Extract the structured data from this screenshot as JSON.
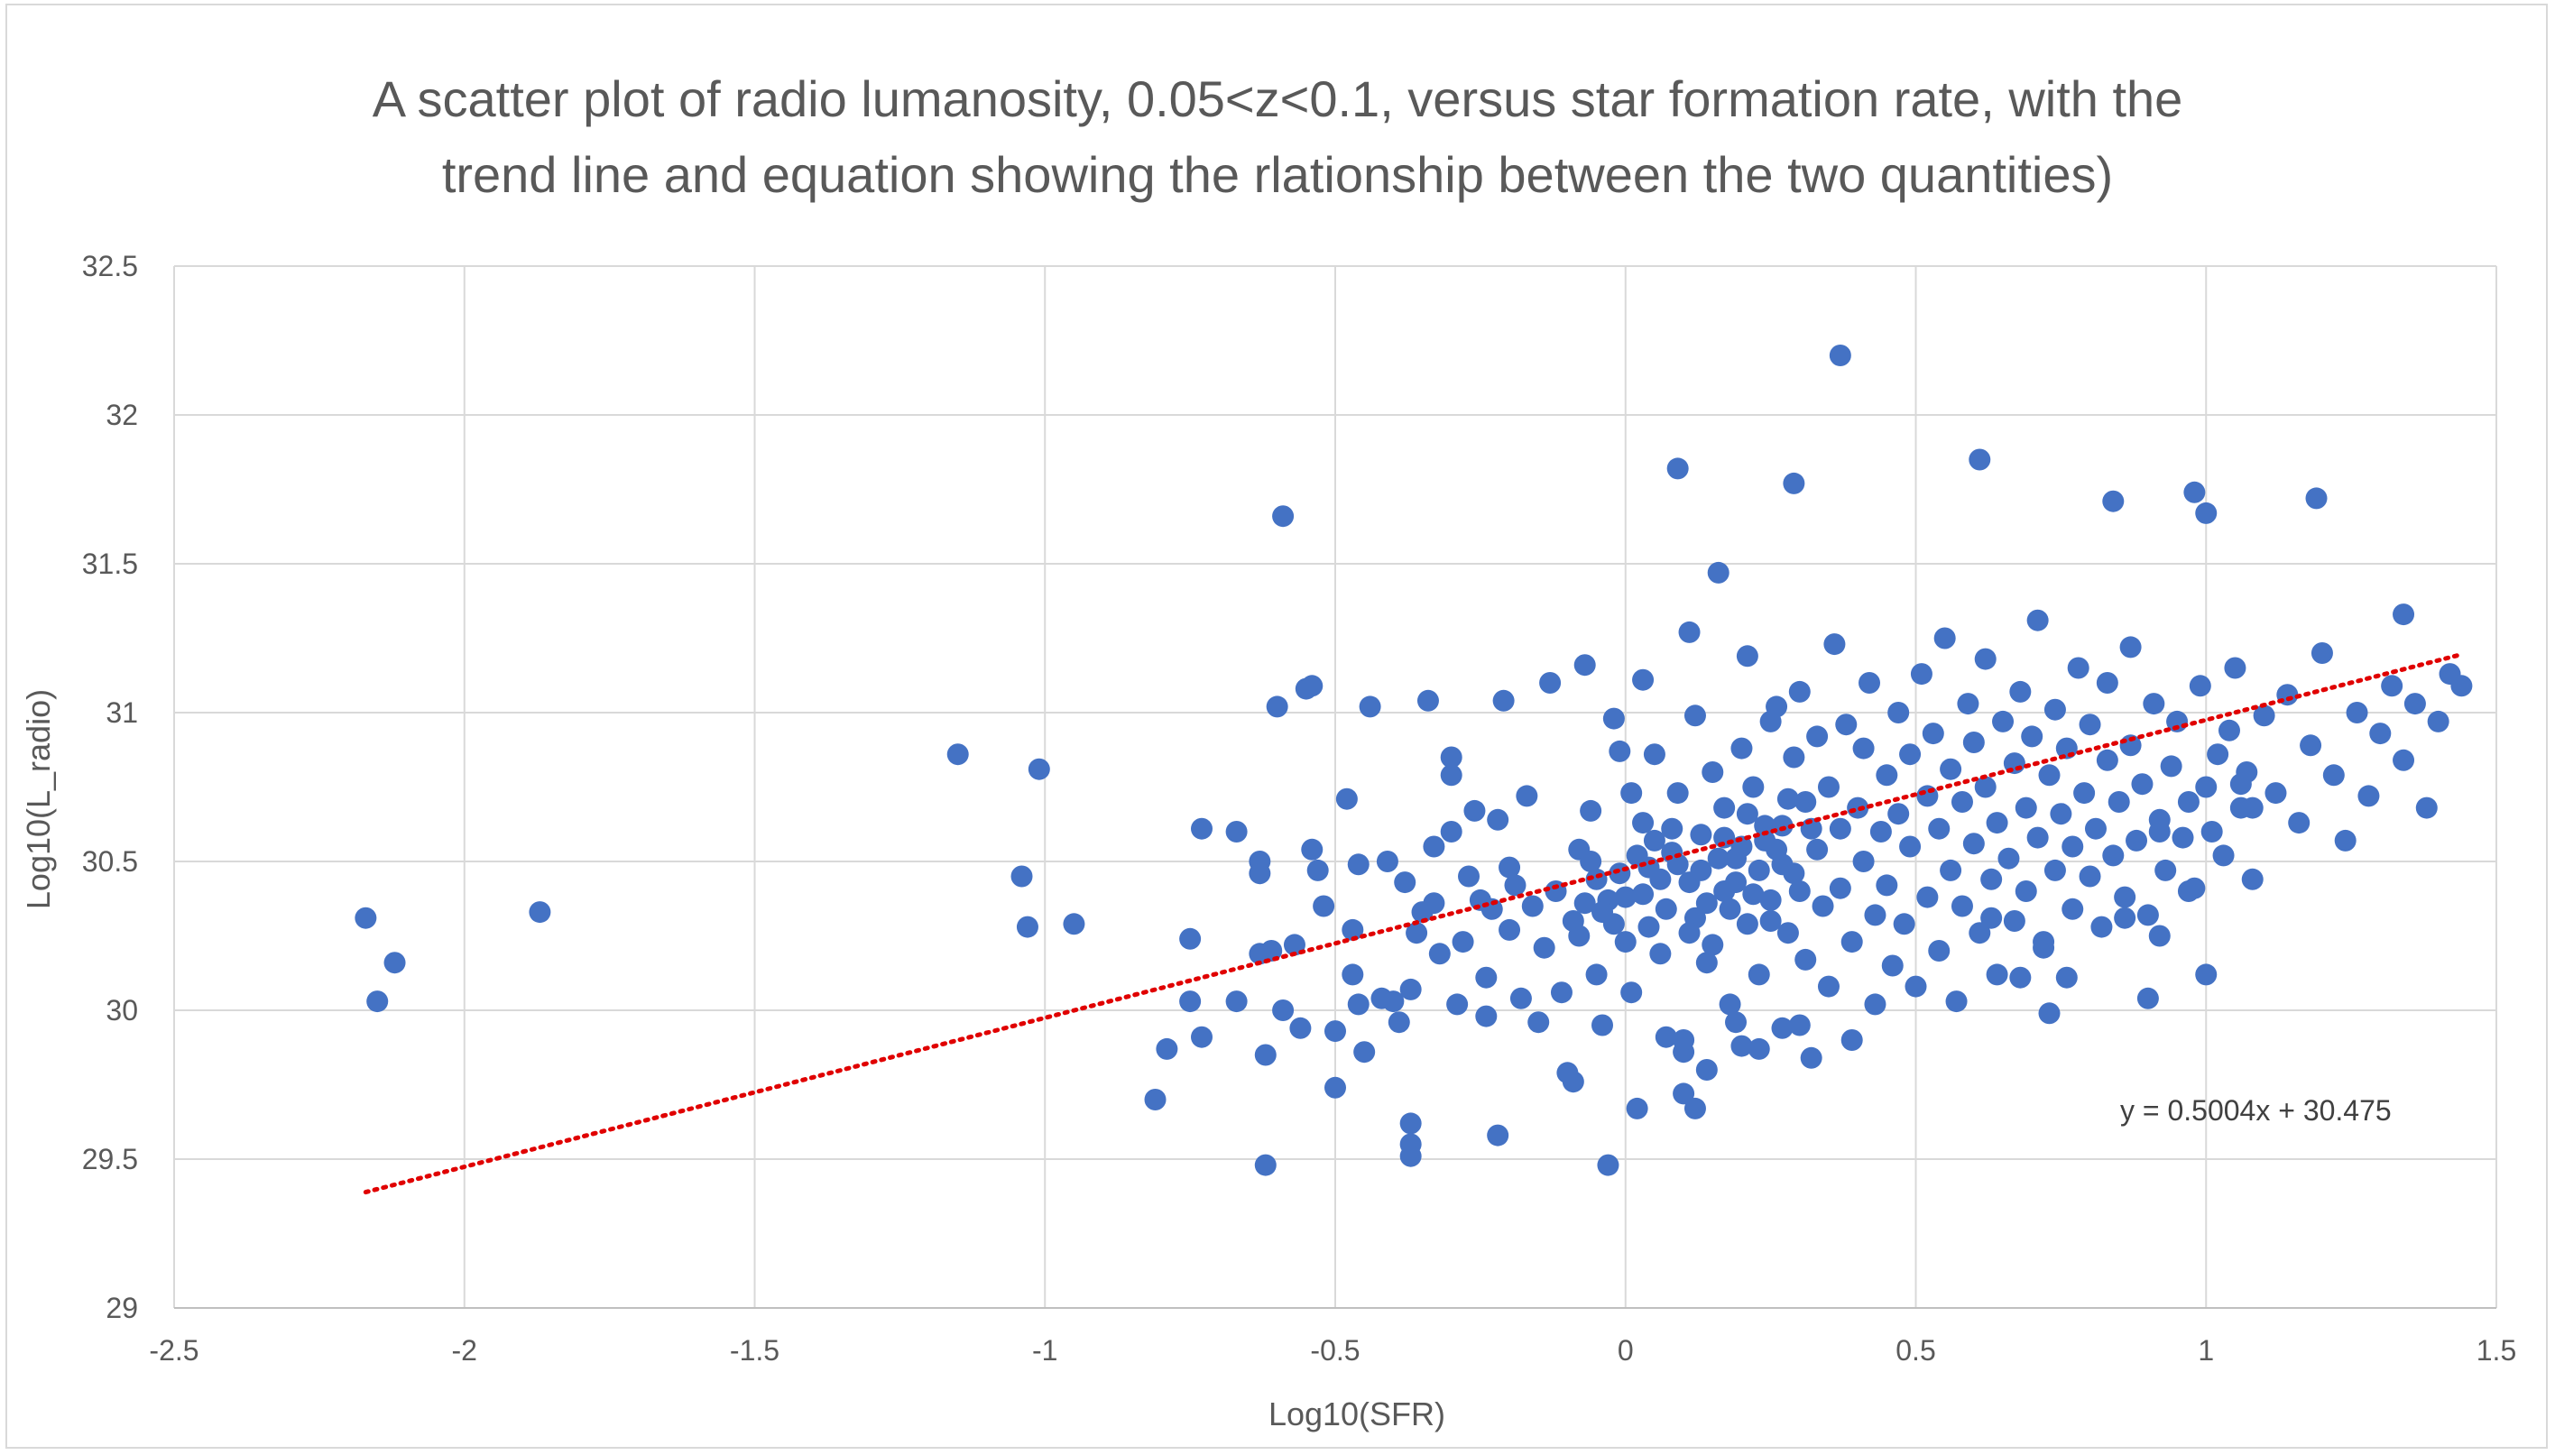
{
  "chart_data": {
    "type": "scatter",
    "title_lines": [
      "A scatter plot of radio lumanosity, 0.05<z<0.1, versus star formation rate, with the",
      "trend line and equation showing the rlationship between the two quantities)"
    ],
    "xlabel": "Log10(SFR)",
    "ylabel": "Log10(L_radio)",
    "xlim": [
      -2.5,
      1.5
    ],
    "ylim": [
      29,
      32.5
    ],
    "xticks": [
      "-2.5",
      "-2",
      "-1.5",
      "-1",
      "-0.5",
      "0",
      "0.5",
      "1",
      "1.5"
    ],
    "yticks": [
      "29",
      "29.5",
      "30",
      "30.5",
      "31",
      "31.5",
      "32",
      "32.5"
    ],
    "grid": true,
    "legend": "none",
    "colors": {
      "points": "#4472c4",
      "trendline": "#e00000",
      "grid": "#d9d9d9"
    },
    "trendline": {
      "slope": 0.5004,
      "intercept": 30.475,
      "x_range": [
        -2.17,
        1.44
      ],
      "style": "dotted"
    },
    "equation_label": "y = 0.5004x + 30.475",
    "points": [
      [
        -2.17,
        30.31
      ],
      [
        -2.15,
        30.03
      ],
      [
        -2.12,
        30.16
      ],
      [
        -1.87,
        30.33
      ],
      [
        -1.15,
        30.86
      ],
      [
        -1.04,
        30.45
      ],
      [
        -1.03,
        30.28
      ],
      [
        -1.01,
        30.81
      ],
      [
        -0.95,
        30.29
      ],
      [
        -0.81,
        29.7
      ],
      [
        -0.79,
        29.87
      ],
      [
        -0.75,
        30.24
      ],
      [
        -0.75,
        30.03
      ],
      [
        -0.73,
        30.61
      ],
      [
        -0.73,
        29.91
      ],
      [
        -0.67,
        30.6
      ],
      [
        -0.67,
        30.03
      ],
      [
        -0.63,
        30.5
      ],
      [
        -0.63,
        30.46
      ],
      [
        -0.63,
        30.19
      ],
      [
        -0.62,
        29.48
      ],
      [
        -0.62,
        29.85
      ],
      [
        -0.61,
        30.2
      ],
      [
        -0.6,
        31.02
      ],
      [
        -0.59,
        31.66
      ],
      [
        -0.59,
        30.0
      ],
      [
        -0.57,
        30.22
      ],
      [
        -0.56,
        29.94
      ],
      [
        -0.55,
        31.08
      ],
      [
        -0.54,
        31.09
      ],
      [
        -0.54,
        30.54
      ],
      [
        -0.53,
        30.47
      ],
      [
        -0.52,
        30.35
      ],
      [
        -0.5,
        29.74
      ],
      [
        -0.5,
        29.93
      ],
      [
        -0.48,
        30.71
      ],
      [
        -0.47,
        30.27
      ],
      [
        -0.47,
        30.12
      ],
      [
        -0.46,
        30.49
      ],
      [
        -0.46,
        30.02
      ],
      [
        -0.45,
        29.86
      ],
      [
        -0.44,
        31.02
      ],
      [
        -0.42,
        30.04
      ],
      [
        -0.41,
        30.5
      ],
      [
        -0.4,
        30.03
      ],
      [
        -0.39,
        29.96
      ],
      [
        -0.38,
        30.43
      ],
      [
        -0.37,
        29.62
      ],
      [
        -0.37,
        29.55
      ],
      [
        -0.37,
        29.51
      ],
      [
        -0.37,
        30.07
      ],
      [
        -0.36,
        30.26
      ],
      [
        -0.35,
        30.33
      ],
      [
        -0.34,
        31.04
      ],
      [
        -0.33,
        30.55
      ],
      [
        -0.33,
        30.36
      ],
      [
        -0.32,
        30.19
      ],
      [
        -0.3,
        30.6
      ],
      [
        -0.3,
        30.85
      ],
      [
        -0.3,
        30.79
      ],
      [
        -0.29,
        30.02
      ],
      [
        -0.28,
        30.23
      ],
      [
        -0.27,
        30.45
      ],
      [
        -0.26,
        30.67
      ],
      [
        -0.25,
        30.37
      ],
      [
        -0.24,
        29.98
      ],
      [
        -0.24,
        30.11
      ],
      [
        -0.23,
        30.34
      ],
      [
        -0.22,
        30.64
      ],
      [
        -0.22,
        29.58
      ],
      [
        -0.21,
        31.04
      ],
      [
        -0.2,
        30.48
      ],
      [
        -0.2,
        30.27
      ],
      [
        -0.19,
        30.42
      ],
      [
        -0.18,
        30.04
      ],
      [
        -0.17,
        30.72
      ],
      [
        -0.16,
        30.35
      ],
      [
        -0.15,
        29.96
      ],
      [
        -0.14,
        30.21
      ],
      [
        -0.13,
        31.1
      ],
      [
        -0.12,
        30.4
      ],
      [
        -0.11,
        30.06
      ],
      [
        -0.1,
        29.79
      ],
      [
        -0.09,
        29.76
      ],
      [
        -0.09,
        30.3
      ],
      [
        -0.08,
        30.54
      ],
      [
        -0.07,
        31.16
      ],
      [
        -0.06,
        30.67
      ],
      [
        -0.05,
        30.12
      ],
      [
        -0.04,
        29.95
      ],
      [
        -0.03,
        29.48
      ],
      [
        -0.02,
        30.98
      ],
      [
        -0.01,
        30.87
      ],
      [
        0.0,
        30.38
      ],
      [
        0.0,
        30.23
      ],
      [
        0.01,
        30.73
      ],
      [
        0.01,
        30.06
      ],
      [
        0.02,
        29.67
      ],
      [
        0.03,
        31.11
      ],
      [
        0.03,
        30.63
      ],
      [
        0.04,
        30.48
      ],
      [
        0.05,
        30.86
      ],
      [
        0.06,
        30.19
      ],
      [
        0.07,
        29.91
      ],
      [
        0.08,
        30.53
      ],
      [
        0.09,
        31.82
      ],
      [
        0.09,
        30.73
      ],
      [
        0.1,
        29.72
      ],
      [
        0.1,
        29.86
      ],
      [
        0.11,
        30.43
      ],
      [
        0.11,
        31.27
      ],
      [
        0.12,
        30.99
      ],
      [
        0.12,
        30.31
      ],
      [
        0.13,
        30.59
      ],
      [
        0.14,
        29.8
      ],
      [
        0.14,
        30.16
      ],
      [
        0.15,
        30.8
      ],
      [
        0.16,
        31.47
      ],
      [
        0.17,
        30.4
      ],
      [
        0.17,
        30.68
      ],
      [
        0.18,
        30.02
      ],
      [
        0.19,
        29.96
      ],
      [
        0.19,
        30.51
      ],
      [
        0.2,
        30.88
      ],
      [
        0.21,
        31.19
      ],
      [
        0.21,
        30.29
      ],
      [
        0.22,
        30.75
      ],
      [
        0.23,
        29.87
      ],
      [
        0.23,
        30.12
      ],
      [
        0.24,
        30.57
      ],
      [
        0.25,
        30.97
      ],
      [
        0.25,
        30.37
      ],
      [
        0.26,
        31.02
      ],
      [
        0.27,
        30.62
      ],
      [
        0.27,
        29.94
      ],
      [
        0.28,
        30.26
      ],
      [
        0.29,
        30.85
      ],
      [
        0.29,
        30.46
      ],
      [
        0.3,
        31.07
      ],
      [
        0.31,
        30.7
      ],
      [
        0.31,
        30.17
      ],
      [
        0.32,
        29.84
      ],
      [
        0.33,
        30.54
      ],
      [
        0.33,
        30.92
      ],
      [
        0.34,
        30.35
      ],
      [
        0.35,
        30.75
      ],
      [
        0.35,
        30.08
      ],
      [
        0.36,
        31.23
      ],
      [
        0.37,
        30.61
      ],
      [
        0.37,
        30.41
      ],
      [
        0.38,
        30.96
      ],
      [
        0.39,
        29.9
      ],
      [
        0.39,
        30.23
      ],
      [
        0.4,
        30.68
      ],
      [
        0.41,
        30.88
      ],
      [
        0.41,
        30.5
      ],
      [
        0.42,
        31.1
      ],
      [
        0.43,
        30.32
      ],
      [
        0.43,
        30.02
      ],
      [
        0.44,
        30.6
      ],
      [
        0.45,
        30.79
      ],
      [
        0.45,
        30.42
      ],
      [
        0.46,
        30.15
      ],
      [
        0.47,
        31.0
      ],
      [
        0.47,
        30.66
      ],
      [
        0.48,
        30.29
      ],
      [
        0.49,
        30.86
      ],
      [
        0.49,
        30.55
      ],
      [
        0.5,
        30.08
      ],
      [
        0.51,
        31.13
      ],
      [
        0.52,
        30.72
      ],
      [
        0.52,
        30.38
      ],
      [
        0.53,
        30.93
      ],
      [
        0.54,
        30.2
      ],
      [
        0.54,
        30.61
      ],
      [
        0.55,
        31.25
      ],
      [
        0.56,
        30.47
      ],
      [
        0.56,
        30.81
      ],
      [
        0.57,
        30.03
      ],
      [
        0.58,
        30.7
      ],
      [
        0.58,
        30.35
      ],
      [
        0.59,
        31.03
      ],
      [
        0.6,
        30.56
      ],
      [
        0.6,
        30.9
      ],
      [
        0.61,
        30.26
      ],
      [
        0.62,
        30.75
      ],
      [
        0.62,
        31.18
      ],
      [
        0.63,
        30.44
      ],
      [
        0.64,
        30.63
      ],
      [
        0.64,
        30.12
      ],
      [
        0.65,
        30.97
      ],
      [
        0.66,
        30.51
      ],
      [
        0.67,
        30.83
      ],
      [
        0.67,
        30.3
      ],
      [
        0.68,
        31.07
      ],
      [
        0.69,
        30.68
      ],
      [
        0.69,
        30.4
      ],
      [
        0.7,
        30.92
      ],
      [
        0.71,
        30.58
      ],
      [
        0.71,
        31.31
      ],
      [
        0.72,
        30.23
      ],
      [
        0.73,
        30.79
      ],
      [
        0.74,
        30.47
      ],
      [
        0.74,
        31.01
      ],
      [
        0.75,
        30.66
      ],
      [
        0.76,
        30.88
      ],
      [
        0.77,
        30.34
      ],
      [
        0.77,
        30.55
      ],
      [
        0.78,
        31.15
      ],
      [
        0.79,
        30.73
      ],
      [
        0.8,
        30.45
      ],
      [
        0.8,
        30.96
      ],
      [
        0.81,
        30.61
      ],
      [
        0.82,
        30.28
      ],
      [
        0.83,
        30.84
      ],
      [
        0.83,
        31.1
      ],
      [
        0.84,
        30.52
      ],
      [
        0.85,
        30.7
      ],
      [
        0.86,
        30.38
      ],
      [
        0.87,
        31.22
      ],
      [
        0.87,
        30.89
      ],
      [
        0.88,
        30.57
      ],
      [
        0.89,
        30.76
      ],
      [
        0.9,
        30.32
      ],
      [
        0.91,
        31.03
      ],
      [
        0.92,
        30.64
      ],
      [
        0.93,
        30.47
      ],
      [
        0.94,
        30.82
      ],
      [
        0.95,
        30.97
      ],
      [
        0.96,
        30.58
      ],
      [
        0.97,
        30.7
      ],
      [
        0.98,
        30.41
      ],
      [
        0.99,
        31.09
      ],
      [
        1.0,
        30.75
      ],
      [
        1.01,
        30.6
      ],
      [
        1.02,
        30.86
      ],
      [
        1.03,
        30.52
      ],
      [
        1.04,
        30.94
      ],
      [
        1.05,
        31.15
      ],
      [
        1.06,
        30.68
      ],
      [
        1.07,
        30.8
      ],
      [
        1.08,
        30.44
      ],
      [
        1.1,
        30.99
      ],
      [
        1.12,
        30.73
      ],
      [
        1.14,
        31.06
      ],
      [
        1.16,
        30.63
      ],
      [
        1.18,
        30.89
      ],
      [
        1.2,
        31.2
      ],
      [
        1.22,
        30.79
      ],
      [
        1.24,
        30.57
      ],
      [
        1.26,
        31.0
      ],
      [
        1.28,
        30.72
      ],
      [
        1.3,
        30.93
      ],
      [
        1.32,
        31.09
      ],
      [
        1.34,
        30.84
      ],
      [
        1.36,
        31.03
      ],
      [
        1.38,
        30.68
      ],
      [
        1.4,
        30.97
      ],
      [
        1.42,
        31.13
      ],
      [
        1.44,
        31.09
      ],
      [
        0.37,
        32.2
      ],
      [
        0.29,
        31.77
      ],
      [
        0.61,
        31.85
      ],
      [
        0.98,
        31.74
      ],
      [
        1.0,
        31.67
      ],
      [
        1.19,
        31.72
      ],
      [
        0.84,
        31.71
      ],
      [
        1.34,
        31.33
      ],
      [
        0.72,
        30.21
      ],
      [
        0.76,
        30.11
      ],
      [
        0.73,
        29.99
      ],
      [
        0.86,
        30.31
      ],
      [
        0.9,
        30.04
      ],
      [
        0.92,
        30.25
      ],
      [
        0.68,
        30.11
      ],
      [
        0.63,
        30.31
      ],
      [
        1.08,
        30.68
      ],
      [
        0.97,
        30.4
      ],
      [
        0.92,
        30.6
      ],
      [
        1.06,
        30.76
      ],
      [
        1.0,
        30.12
      ],
      [
        0.12,
        29.67
      ],
      [
        0.2,
        29.88
      ],
      [
        0.3,
        29.95
      ],
      [
        0.1,
        29.9
      ],
      [
        0.23,
        30.47
      ],
      [
        0.21,
        30.66
      ],
      [
        0.18,
        30.34
      ],
      [
        0.15,
        30.22
      ],
      [
        0.26,
        30.54
      ],
      [
        0.28,
        30.71
      ],
      [
        0.22,
        30.39
      ],
      [
        0.17,
        30.58
      ],
      [
        0.24,
        30.62
      ],
      [
        0.19,
        30.43
      ],
      [
        0.27,
        30.49
      ],
      [
        0.16,
        30.51
      ],
      [
        0.25,
        30.3
      ],
      [
        0.2,
        30.55
      ],
      [
        0.13,
        30.47
      ],
      [
        0.3,
        30.4
      ],
      [
        0.32,
        30.61
      ],
      [
        0.14,
        30.36
      ],
      [
        0.06,
        30.44
      ],
      [
        0.04,
        30.28
      ],
      [
        0.08,
        30.61
      ],
      [
        0.02,
        30.52
      ],
      [
        0.07,
        30.34
      ],
      [
        0.03,
        30.39
      ],
      [
        0.05,
        30.57
      ],
      [
        0.09,
        30.49
      ],
      [
        0.11,
        30.26
      ],
      [
        -0.05,
        30.44
      ],
      [
        -0.03,
        30.37
      ],
      [
        -0.08,
        30.25
      ],
      [
        -0.06,
        30.5
      ],
      [
        -0.02,
        30.29
      ],
      [
        -0.04,
        30.33
      ],
      [
        -0.01,
        30.46
      ],
      [
        -0.07,
        30.36
      ]
    ]
  }
}
